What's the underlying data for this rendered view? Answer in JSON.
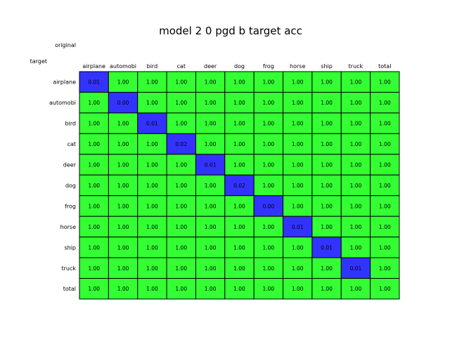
{
  "chart_data": {
    "type": "heatmap",
    "title": "model 2 0 pgd b  target acc",
    "column_axis_label": "original",
    "row_axis_label": "target",
    "columns": [
      "airplane",
      "automobi",
      "bird",
      "cat",
      "deer",
      "dog",
      "frog",
      "horse",
      "ship",
      "truck",
      "total"
    ],
    "rows": [
      "airplane",
      "automobi",
      "bird",
      "cat",
      "deer",
      "dog",
      "frog",
      "horse",
      "ship",
      "truck",
      "total"
    ],
    "values": [
      [
        "0.01",
        "1.00",
        "1.00",
        "1.00",
        "1.00",
        "1.00",
        "1.00",
        "1.00",
        "1.00",
        "1.00",
        "1.00"
      ],
      [
        "1.00",
        "0.00",
        "1.00",
        "1.00",
        "1.00",
        "1.00",
        "1.00",
        "1.00",
        "1.00",
        "1.00",
        "1.00"
      ],
      [
        "1.00",
        "1.00",
        "0.01",
        "1.00",
        "1.00",
        "1.00",
        "1.00",
        "1.00",
        "1.00",
        "1.00",
        "1.00"
      ],
      [
        "1.00",
        "1.00",
        "1.00",
        "0.02",
        "1.00",
        "1.00",
        "1.00",
        "1.00",
        "1.00",
        "1.00",
        "1.00"
      ],
      [
        "1.00",
        "1.00",
        "1.00",
        "1.00",
        "0.01",
        "1.00",
        "1.00",
        "1.00",
        "1.00",
        "1.00",
        "1.00"
      ],
      [
        "1.00",
        "1.00",
        "1.00",
        "1.00",
        "1.00",
        "0.02",
        "1.00",
        "1.00",
        "1.00",
        "1.00",
        "1.00"
      ],
      [
        "1.00",
        "1.00",
        "1.00",
        "1.00",
        "1.00",
        "1.00",
        "0.00",
        "1.00",
        "1.00",
        "1.00",
        "1.00"
      ],
      [
        "1.00",
        "1.00",
        "1.00",
        "1.00",
        "1.00",
        "1.00",
        "1.00",
        "0.01",
        "1.00",
        "1.00",
        "1.00"
      ],
      [
        "1.00",
        "1.00",
        "1.00",
        "1.00",
        "1.00",
        "1.00",
        "1.00",
        "1.00",
        "0.01",
        "1.00",
        "1.00"
      ],
      [
        "1.00",
        "1.00",
        "1.00",
        "1.00",
        "1.00",
        "1.00",
        "1.00",
        "1.00",
        "1.00",
        "0.01",
        "1.00"
      ],
      [
        "1.00",
        "1.00",
        "1.00",
        "1.00",
        "1.00",
        "1.00",
        "1.00",
        "1.00",
        "1.00",
        "1.00",
        "1.00"
      ]
    ],
    "colors": {
      "high": "#33ff33",
      "low": "#3333ff",
      "border": "#000000"
    },
    "threshold": 0.5
  }
}
